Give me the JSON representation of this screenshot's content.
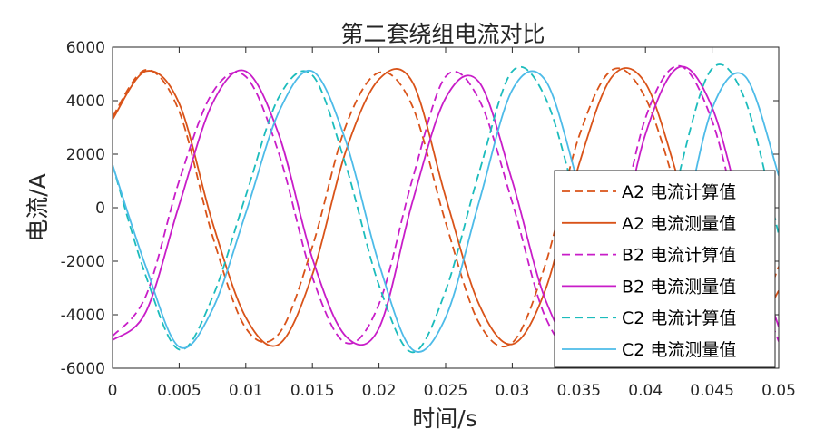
{
  "chart_data": {
    "type": "line",
    "title": "第二套绕组电流对比",
    "xlabel": "时间/s",
    "ylabel": "电流/A",
    "xlim": [
      0,
      0.05
    ],
    "ylim": [
      -6000,
      6000
    ],
    "xticks": [
      0,
      0.005,
      0.01,
      0.015,
      0.02,
      0.025,
      0.03,
      0.035,
      0.04,
      0.045,
      0.05
    ],
    "xtick_labels": [
      "0",
      "0.005",
      "0.01",
      "0.015",
      "0.02",
      "0.025",
      "0.03",
      "0.035",
      "0.04",
      "0.045",
      "0.05"
    ],
    "yticks": [
      -6000,
      -4000,
      -2000,
      0,
      2000,
      4000,
      6000
    ],
    "ytick_labels": [
      "-6000",
      "-4000",
      "-2000",
      "0",
      "2000",
      "4000",
      "6000"
    ],
    "grid": false,
    "legend_position": "bottom-right",
    "x": [
      0,
      0.0025,
      0.005,
      0.0075,
      0.01,
      0.0125,
      0.015,
      0.0175,
      0.02,
      0.0225,
      0.025,
      0.0275,
      0.03,
      0.0325,
      0.035,
      0.0375,
      0.04,
      0.0425,
      0.045,
      0.0475,
      0.05
    ],
    "series": [
      {
        "name": "A2 电流计算值",
        "color": "#d95319",
        "dash": "dashed",
        "values": [
          3400,
          5150,
          3600,
          -1050,
          -4500,
          -4700,
          -1450,
          3050,
          5050,
          3800,
          -550,
          -4300,
          -5050,
          -2100,
          2650,
          5150,
          4100,
          350,
          -3900,
          -5100,
          -2200
        ]
      },
      {
        "name": "A2 电流测量值",
        "color": "#d95319",
        "dash": "solid",
        "values": [
          3300,
          5100,
          3900,
          -550,
          -4100,
          -5100,
          -2500,
          2100,
          4800,
          4700,
          400,
          -3600,
          -5100,
          -3050,
          1600,
          4900,
          4650,
          1000,
          -3200,
          -5000,
          -3100
        ]
      },
      {
        "name": "B2 电流计算值",
        "color": "#c81dc8",
        "dash": "dashed",
        "values": [
          -4800,
          -3300,
          1000,
          4300,
          4900,
          2000,
          -2600,
          -5050,
          -3600,
          1050,
          4900,
          4050,
          200,
          -4100,
          -5250,
          -1850,
          3350,
          5300,
          3250,
          -1500,
          -5000
        ]
      },
      {
        "name": "B2 电流测量值",
        "color": "#c81dc8",
        "dash": "solid",
        "values": [
          -4950,
          -3900,
          100,
          3900,
          5100,
          2700,
          -1900,
          -4800,
          -4500,
          200,
          4100,
          4700,
          1000,
          -3450,
          -5250,
          -2450,
          2750,
          5250,
          3750,
          -700,
          -4450
        ]
      },
      {
        "name": "C2 电流计算值",
        "color": "#1cbcbc",
        "dash": "dashed",
        "values": [
          1600,
          -2550,
          -5300,
          -3350,
          450,
          4150,
          4950,
          1600,
          -2900,
          -5400,
          -3100,
          1300,
          5100,
          4100,
          -100,
          -4300,
          -4800,
          1200,
          5200,
          4000,
          -1000
        ]
      },
      {
        "name": "C2 电流测量值",
        "color": "#4dbbe8",
        "dash": "solid",
        "values": [
          1600,
          -2200,
          -5200,
          -3800,
          -200,
          3600,
          5100,
          2500,
          -2100,
          -5300,
          -4100,
          200,
          4400,
          4750,
          800,
          -3700,
          -5000,
          -1400,
          3700,
          4900,
          1200
        ]
      }
    ]
  }
}
